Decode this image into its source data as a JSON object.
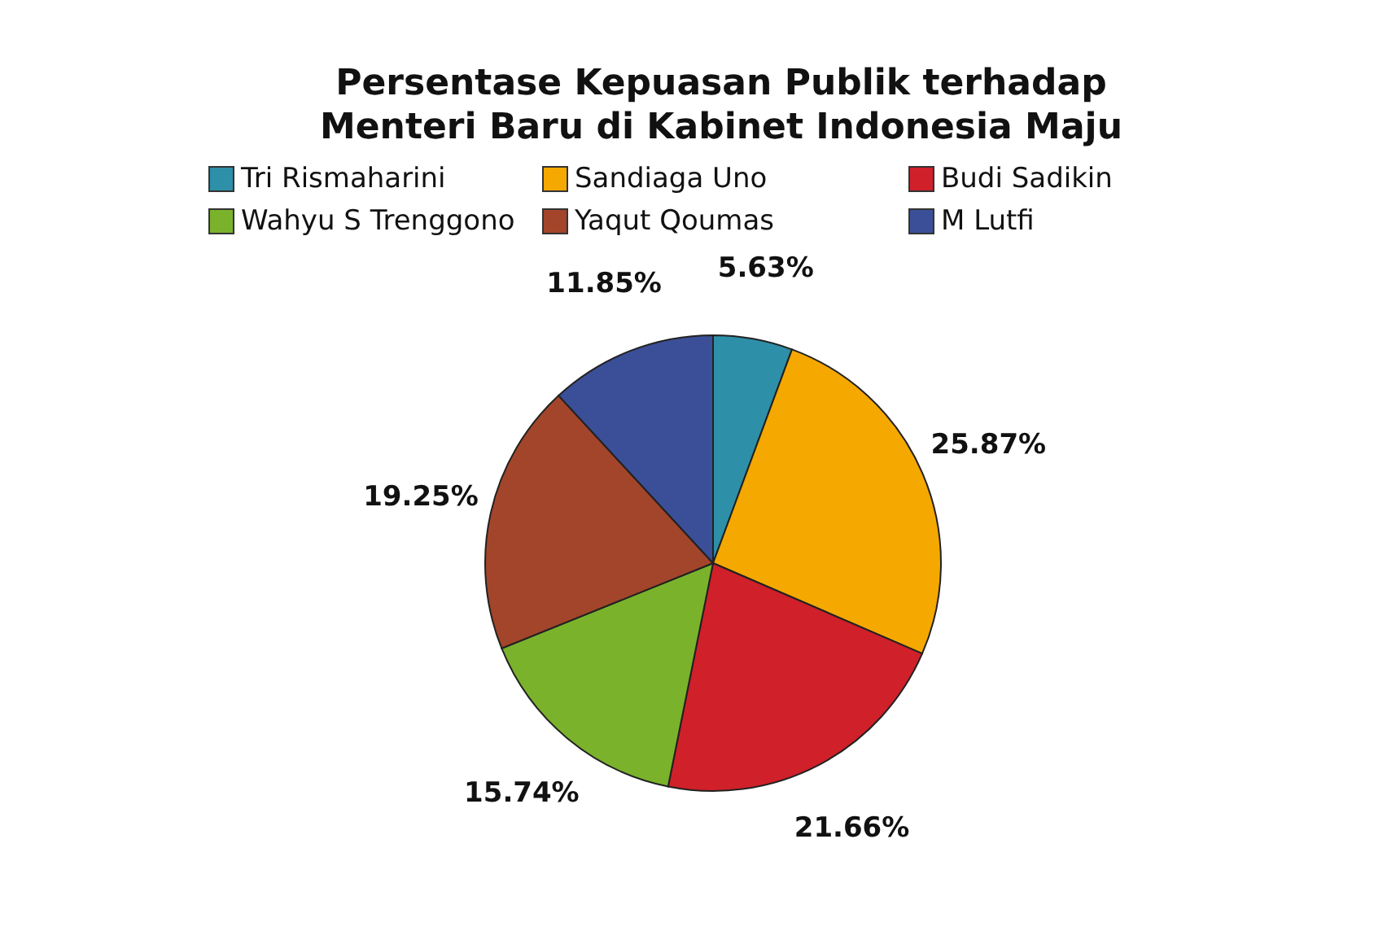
{
  "chart_data": {
    "type": "pie",
    "title": "Persentase Kepuasan Publik terhadap Menteri Baru di Kabinet Indonesia Maju",
    "categories": [
      "Tri Rismaharini",
      "Sandiaga Uno",
      "Budi Sadikin",
      "Wahyu S Trenggono",
      "Yaqut Qoumas",
      "M Lutfi"
    ],
    "values": [
      5.63,
      25.87,
      21.66,
      15.74,
      19.25,
      11.85
    ],
    "value_labels": [
      "5.63%",
      "25.87%",
      "21.66%",
      "15.74%",
      "19.25%",
      "11.85%"
    ],
    "colors": [
      "#2e8fa8",
      "#f5a800",
      "#d0202a",
      "#7bb22c",
      "#a3452a",
      "#3b4f98"
    ],
    "legend": "top"
  }
}
